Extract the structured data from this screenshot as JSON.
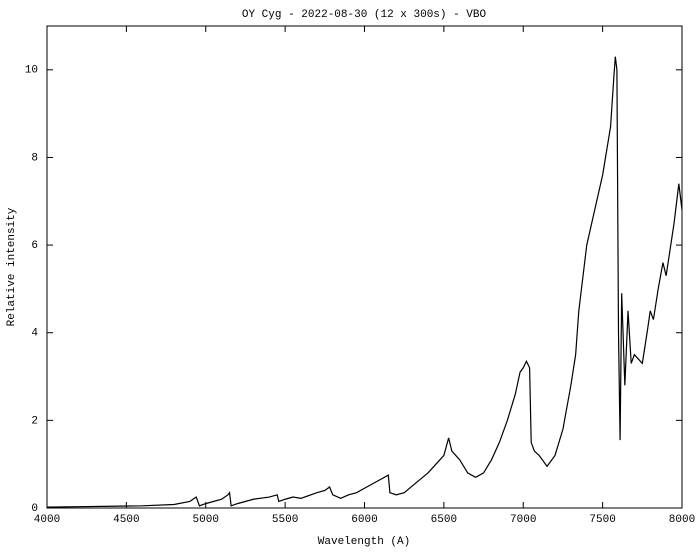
{
  "chart_data": {
    "type": "line",
    "title": "OY Cyg - 2022-08-30 (12 x 300s) - VBO",
    "x_label": "Wavelength (A)",
    "y_label": "Relative intensity",
    "xlim": [
      4000,
      8000
    ],
    "xticks": [
      4000,
      4500,
      5000,
      5500,
      6000,
      6500,
      7000,
      7500,
      8000
    ],
    "ylim": [
      0,
      11
    ],
    "yticks": [
      0,
      2,
      4,
      6,
      8,
      10
    ],
    "series": [
      {
        "color": "#000000",
        "x": [
          4000,
          4200,
          4400,
          4600,
          4800,
          4900,
          4940,
          4960,
          5000,
          5100,
          5140,
          5150,
          5160,
          5200,
          5300,
          5400,
          5450,
          5460,
          5500,
          5550,
          5600,
          5700,
          5750,
          5780,
          5800,
          5850,
          5900,
          5950,
          6000,
          6100,
          6150,
          6160,
          6200,
          6250,
          6300,
          6400,
          6450,
          6500,
          6530,
          6550,
          6600,
          6650,
          6700,
          6750,
          6800,
          6850,
          6900,
          6950,
          6980,
          7000,
          7020,
          7040,
          7050,
          7070,
          7100,
          7150,
          7200,
          7250,
          7300,
          7330,
          7350,
          7400,
          7450,
          7500,
          7550,
          7570,
          7580,
          7590,
          7600,
          7610,
          7620,
          7640,
          7660,
          7680,
          7700,
          7750,
          7780,
          7800,
          7820,
          7850,
          7880,
          7900,
          7950,
          7980,
          8000
        ],
        "values": [
          0.02,
          0.03,
          0.04,
          0.05,
          0.08,
          0.15,
          0.25,
          0.05,
          0.1,
          0.2,
          0.3,
          0.35,
          0.05,
          0.1,
          0.2,
          0.25,
          0.3,
          0.15,
          0.2,
          0.25,
          0.22,
          0.35,
          0.4,
          0.48,
          0.3,
          0.22,
          0.3,
          0.35,
          0.45,
          0.65,
          0.75,
          0.35,
          0.3,
          0.35,
          0.5,
          0.8,
          1.0,
          1.2,
          1.6,
          1.3,
          1.1,
          0.8,
          0.7,
          0.8,
          1.1,
          1.5,
          2.0,
          2.6,
          3.1,
          3.2,
          3.35,
          3.2,
          1.5,
          1.3,
          1.2,
          0.95,
          1.2,
          1.8,
          2.8,
          3.5,
          4.5,
          6.0,
          6.8,
          7.6,
          8.7,
          9.8,
          10.3,
          10.0,
          4.0,
          1.55,
          4.9,
          2.8,
          4.5,
          3.3,
          3.5,
          3.3,
          4.0,
          4.5,
          4.3,
          5.0,
          5.6,
          5.3,
          6.5,
          7.4,
          6.8
        ]
      }
    ]
  }
}
